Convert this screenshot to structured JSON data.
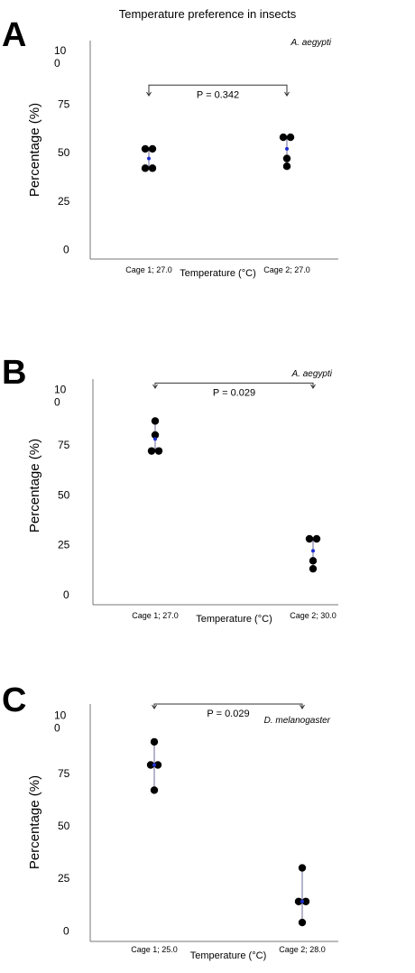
{
  "figure_title": "Temperature preference in insects",
  "chart_data": [
    {
      "type": "scatter",
      "panel_label": "A",
      "species": "A. aegypti",
      "categories": [
        "Cage 1; 27.0",
        "Cage 2; 27.0"
      ],
      "xlabel": "Temperature (°C)",
      "ylabel": "Percentage (%)",
      "yticks": [
        {
          "value": 0,
          "line1": "0",
          "line2": ""
        },
        {
          "value": 25,
          "line1": "25",
          "line2": ""
        },
        {
          "value": 50,
          "line1": "50",
          "line2": ""
        },
        {
          "value": 75,
          "line1": "75",
          "line2": ""
        },
        {
          "value": 100,
          "line1": "10",
          "line2": "0"
        }
      ],
      "ylim": [
        -5,
        108
      ],
      "series": [
        {
          "category": "Cage 1; 27.0",
          "points": [
            52,
            52,
            42,
            42
          ],
          "mean": 47,
          "range": [
            42,
            52
          ]
        },
        {
          "category": "Cage 2; 27.0",
          "points": [
            58,
            58,
            47,
            43
          ],
          "mean": 52,
          "range": [
            43,
            58
          ]
        }
      ],
      "p_value": "P = 0.342",
      "bracket_level": 85
    },
    {
      "type": "scatter",
      "panel_label": "B",
      "species": "A. aegypti",
      "categories": [
        "Cage 1; 27.0",
        "Cage 2; 30.0"
      ],
      "xlabel": "Temperature (°C)",
      "ylabel": "Percentage (%)",
      "yticks": [
        {
          "value": 0,
          "line1": "0",
          "line2": ""
        },
        {
          "value": 25,
          "line1": "25",
          "line2": ""
        },
        {
          "value": 50,
          "line1": "50",
          "line2": ""
        },
        {
          "value": 75,
          "line1": "75",
          "line2": ""
        },
        {
          "value": 100,
          "line1": "10",
          "line2": "0"
        }
      ],
      "ylim": [
        -5,
        108
      ],
      "series": [
        {
          "category": "Cage 1; 27.0",
          "points": [
            87,
            80,
            72,
            72
          ],
          "mean": 78,
          "range": [
            72,
            87
          ]
        },
        {
          "category": "Cage 2; 30.0",
          "points": [
            28,
            28,
            17,
            13
          ],
          "mean": 22,
          "range": [
            13,
            28
          ]
        }
      ],
      "p_value": "P = 0.029",
      "bracket_level": 106
    },
    {
      "type": "scatter",
      "panel_label": "C",
      "species": "D. melanogaster",
      "categories": [
        "Cage 1; 25.0",
        "Cage 2; 28.0"
      ],
      "xlabel": "Temperature (°C)",
      "ylabel": "Percentage (%)",
      "yticks": [
        {
          "value": 0,
          "line1": "0",
          "line2": ""
        },
        {
          "value": 25,
          "line1": "25",
          "line2": ""
        },
        {
          "value": 50,
          "line1": "50",
          "line2": ""
        },
        {
          "value": 75,
          "line1": "75",
          "line2": ""
        },
        {
          "value": 100,
          "line1": "10",
          "line2": "0"
        }
      ],
      "ylim": [
        -5,
        108
      ],
      "series": [
        {
          "category": "Cage 1; 25.0",
          "points": [
            90,
            79,
            79,
            67
          ],
          "mean": 79,
          "range": [
            67,
            90
          ]
        },
        {
          "category": "Cage 2; 28.0",
          "points": [
            30,
            14,
            14,
            4
          ],
          "mean": 14,
          "range": [
            4,
            30
          ]
        }
      ],
      "p_value": "P = 0.029",
      "bracket_level": 108
    }
  ]
}
